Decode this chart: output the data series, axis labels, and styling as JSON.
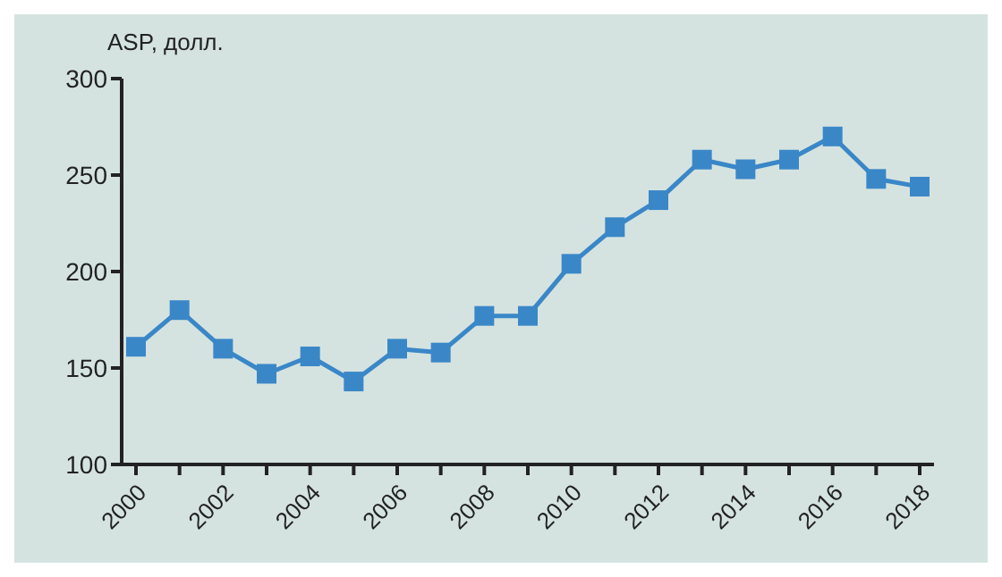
{
  "chart_data": {
    "type": "line",
    "ylabel": "ASP, долл.",
    "categories": [
      "2000",
      null,
      "2002",
      null,
      "2004",
      null,
      "2006",
      null,
      "2008",
      null,
      "2010",
      null,
      "2012",
      null,
      "2014",
      null,
      "2016",
      null,
      "2018"
    ],
    "series": [
      {
        "color": "#3a87c8",
        "values": [
          161,
          180,
          160,
          147,
          156,
          143,
          160,
          158,
          177,
          177,
          204,
          223,
          237,
          258,
          253,
          258,
          270,
          248,
          244
        ]
      }
    ],
    "ylim": [
      100,
      300
    ],
    "yticks": [
      100,
      150,
      200,
      250,
      300
    ],
    "grid": false,
    "marker": "square",
    "line_style": "solid"
  }
}
